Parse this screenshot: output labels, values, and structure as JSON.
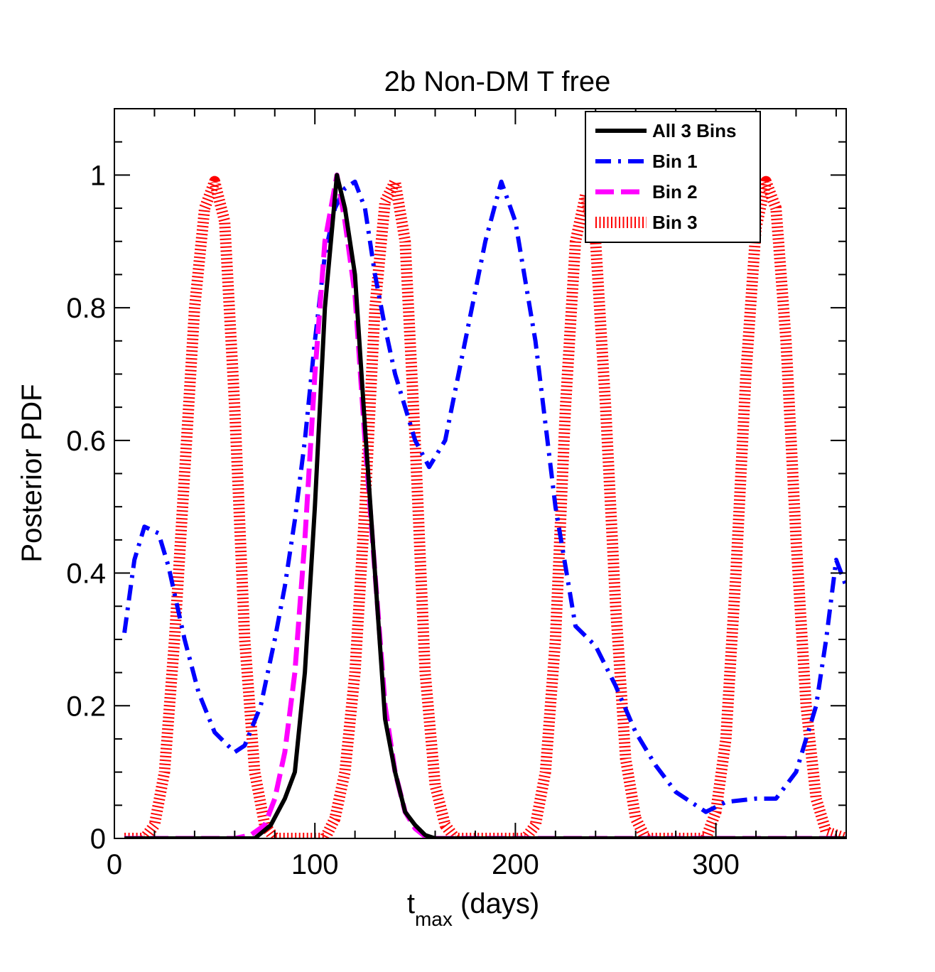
{
  "chart_data": {
    "type": "line",
    "title": "2b Non-DM T free",
    "xlabel_main": "t",
    "xlabel_sub": "max",
    "xlabel_unit": " (days)",
    "ylabel": "Posterior PDF",
    "xlim": [
      0,
      365
    ],
    "ylim": [
      0,
      1.1
    ],
    "xticks": [
      0,
      100,
      200,
      300
    ],
    "xtick_labels": [
      "0",
      "100",
      "200",
      "300"
    ],
    "yticks": [
      0,
      0.2,
      0.4,
      0.6,
      0.8,
      1
    ],
    "ytick_labels": [
      "0",
      "0.2",
      "0.4",
      "0.6",
      "0.8",
      "1"
    ],
    "legend_position": "top-right",
    "series": [
      {
        "name": "All 3 Bins",
        "color": "#000000",
        "style": "solid",
        "x": [
          5,
          60,
          70,
          78,
          85,
          90,
          95,
          100,
          105,
          111,
          115,
          120,
          125,
          130,
          135,
          140,
          145,
          150,
          155,
          160,
          200,
          300,
          365
        ],
        "y": [
          0,
          0,
          0,
          0.02,
          0.06,
          0.1,
          0.25,
          0.5,
          0.8,
          1.0,
          0.95,
          0.85,
          0.62,
          0.4,
          0.18,
          0.1,
          0.04,
          0.02,
          0.005,
          0,
          0,
          0,
          0
        ]
      },
      {
        "name": "Bin 1",
        "color": "#0000ff",
        "style": "dashdot",
        "x": [
          5,
          10,
          15,
          22,
          27,
          35,
          42,
          50,
          60,
          65,
          73,
          80,
          85,
          90,
          95,
          100,
          105,
          110,
          115,
          120,
          125,
          130,
          135,
          140,
          145,
          150,
          157,
          165,
          175,
          185,
          193,
          200,
          210,
          220,
          230,
          240,
          250,
          260,
          270,
          280,
          295,
          305,
          320,
          330,
          340,
          350,
          355,
          360,
          365
        ],
        "y": [
          0.31,
          0.42,
          0.47,
          0.46,
          0.41,
          0.3,
          0.22,
          0.16,
          0.13,
          0.14,
          0.2,
          0.3,
          0.38,
          0.48,
          0.6,
          0.75,
          0.88,
          0.95,
          0.98,
          0.99,
          0.95,
          0.85,
          0.77,
          0.7,
          0.65,
          0.6,
          0.56,
          0.6,
          0.75,
          0.9,
          0.99,
          0.93,
          0.75,
          0.5,
          0.32,
          0.29,
          0.23,
          0.16,
          0.11,
          0.07,
          0.04,
          0.055,
          0.06,
          0.06,
          0.1,
          0.2,
          0.3,
          0.42,
          0.38
        ]
      },
      {
        "name": "Bin 2",
        "color": "#ff00ff",
        "style": "dashed",
        "x": [
          5,
          60,
          68,
          75,
          80,
          85,
          90,
          95,
          100,
          105,
          111,
          115,
          120,
          125,
          130,
          135,
          140,
          145,
          150,
          155,
          160,
          200,
          300,
          365
        ],
        "y": [
          0,
          0,
          0.005,
          0.02,
          0.06,
          0.13,
          0.25,
          0.45,
          0.7,
          0.9,
          1.0,
          0.93,
          0.82,
          0.6,
          0.4,
          0.2,
          0.1,
          0.04,
          0.015,
          0.003,
          0,
          0,
          0,
          0
        ]
      },
      {
        "name": "Bin 3",
        "color": "#ff0000",
        "style": "dotted",
        "x": [
          5,
          15,
          20,
          25,
          30,
          35,
          40,
          45,
          50,
          55,
          60,
          65,
          70,
          75,
          80,
          105,
          110,
          115,
          120,
          125,
          130,
          135,
          140,
          145,
          150,
          155,
          160,
          165,
          170,
          205,
          210,
          215,
          220,
          225,
          230,
          235,
          240,
          245,
          250,
          255,
          260,
          265,
          295,
          300,
          305,
          310,
          315,
          320,
          325,
          330,
          335,
          340,
          345,
          350,
          355,
          365
        ],
        "y": [
          0,
          0,
          0.02,
          0.1,
          0.3,
          0.55,
          0.8,
          0.95,
          0.99,
          0.93,
          0.65,
          0.3,
          0.1,
          0.02,
          0,
          0,
          0.03,
          0.1,
          0.25,
          0.5,
          0.8,
          0.96,
          0.99,
          0.9,
          0.6,
          0.25,
          0.08,
          0.02,
          0,
          0,
          0.02,
          0.1,
          0.3,
          0.65,
          0.9,
          0.97,
          0.9,
          0.65,
          0.35,
          0.12,
          0.03,
          0,
          0,
          0.04,
          0.15,
          0.4,
          0.7,
          0.92,
          0.99,
          0.95,
          0.75,
          0.45,
          0.2,
          0.06,
          0.01,
          0
        ]
      }
    ]
  }
}
